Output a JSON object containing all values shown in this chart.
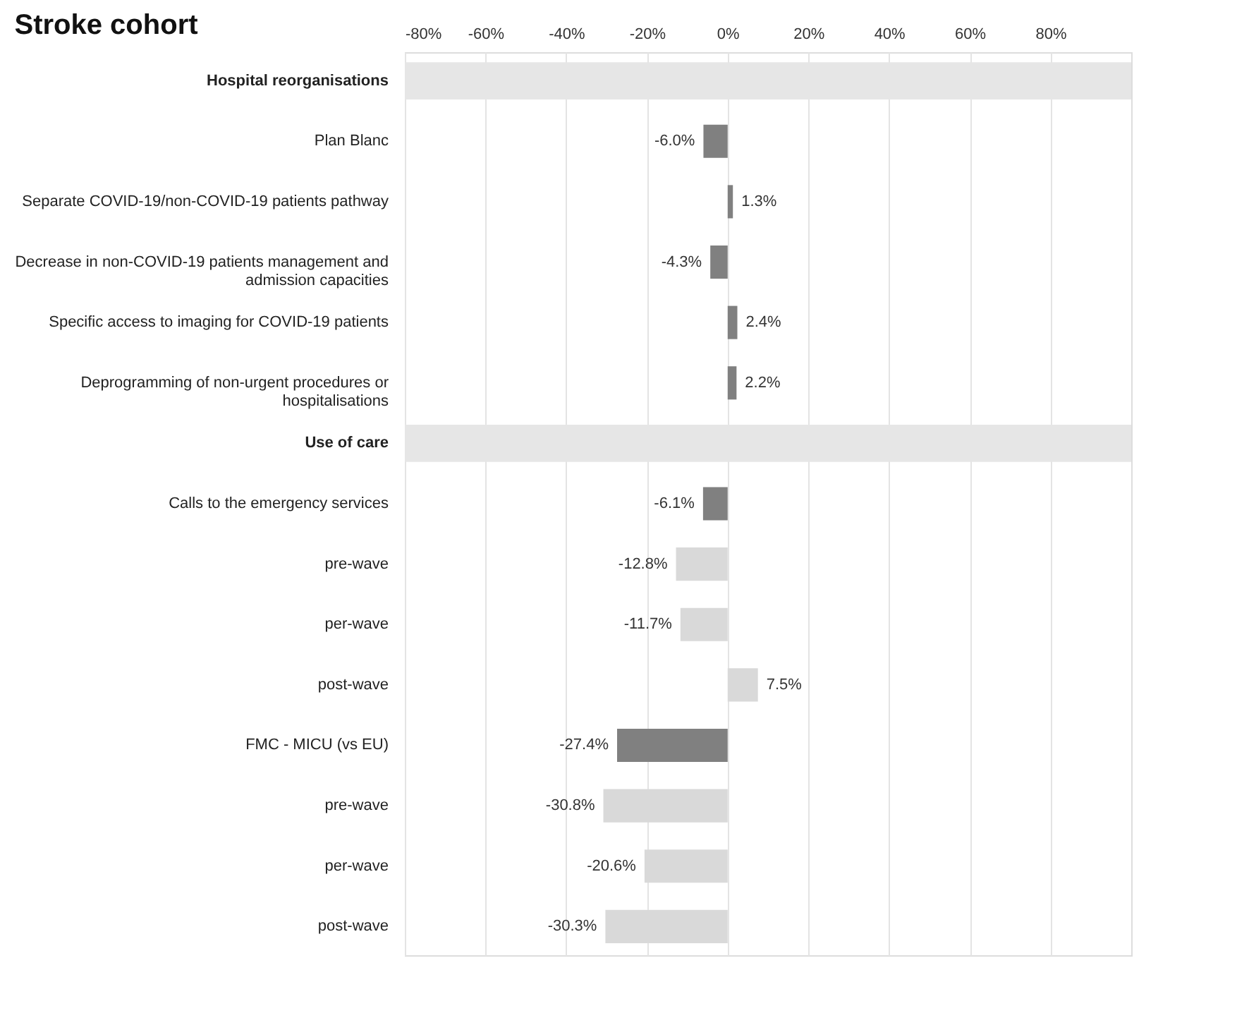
{
  "chart_data": {
    "type": "bar",
    "orientation": "horizontal",
    "title": "Stroke cohort",
    "categories": [
      "Hospital reorganisations",
      "Plan Blanc",
      "Separate COVID-19/non-COVID-19 patients pathway",
      "Decrease in non-COVID-19 patients management and admission capacities",
      "Specific access to imaging for COVID-19 patients",
      "Deprogramming of non-urgent procedures or hospitalisations",
      "Use of care",
      "Calls to the emergency services",
      "pre-wave",
      "per-wave",
      "post-wave",
      "FMC - MICU (vs EU)",
      "pre-wave",
      "per-wave",
      "post-wave"
    ],
    "values": [
      null,
      -6.0,
      1.3,
      -4.3,
      2.4,
      2.2,
      null,
      -6.1,
      -12.8,
      -11.7,
      7.5,
      -27.4,
      -30.8,
      -20.6,
      -30.3
    ],
    "colors": [
      null,
      "#808080",
      "#808080",
      "#808080",
      "#808080",
      "#808080",
      null,
      "#808080",
      "#d9d9d9",
      "#d9d9d9",
      "#d9d9d9",
      "#808080",
      "#d9d9d9",
      "#d9d9d9",
      "#d9d9d9"
    ],
    "value_labels": [
      null,
      "-6.0%",
      "1.3%",
      "-4.3%",
      "2.4%",
      "2.2%",
      null,
      "-6.1%",
      "-12.8%",
      "-11.7%",
      "7.5%",
      "-27.4%",
      "-30.8%",
      "-20.6%",
      "-30.3%"
    ],
    "xlim": [
      -80,
      100
    ],
    "xticks": [
      {
        "value": -80,
        "label": "-80%"
      },
      {
        "value": -60,
        "label": "-60%"
      },
      {
        "value": -40,
        "label": "-40%"
      },
      {
        "value": -20,
        "label": "-20%"
      },
      {
        "value": 0,
        "label": "0%"
      },
      {
        "value": 20,
        "label": "20%"
      },
      {
        "value": 40,
        "label": "40%"
      },
      {
        "value": 60,
        "label": "60%"
      },
      {
        "value": 80,
        "label": "80%"
      }
    ],
    "grid": "x"
  }
}
